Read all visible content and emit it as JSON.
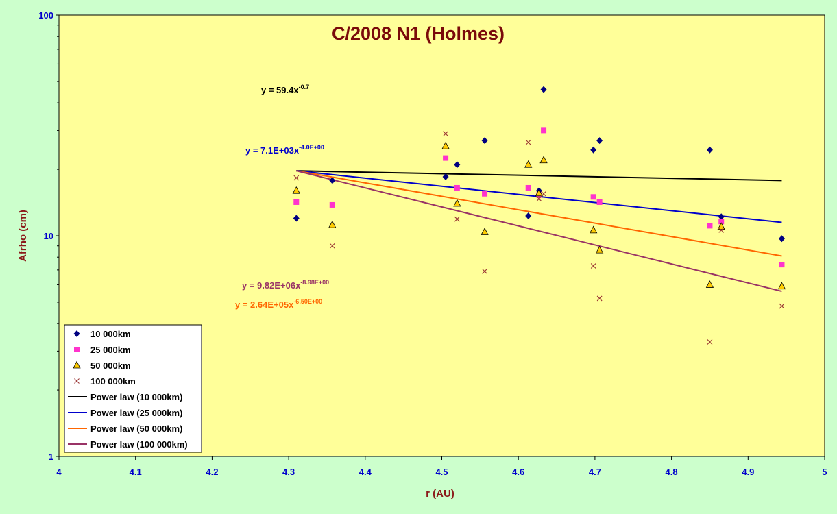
{
  "chart_data": {
    "type": "scatter",
    "title": "C/2008 N1 (Holmes)",
    "xlabel": "r (AU)",
    "ylabel": "Afrho (cm)",
    "xlim": [
      4,
      5
    ],
    "ylim": [
      1,
      100
    ],
    "yscale": "log",
    "x_ticks": [
      "4",
      "4.1",
      "4.2",
      "4.3",
      "4.4",
      "4.5",
      "4.6",
      "4.7",
      "4.8",
      "4.9",
      "5"
    ],
    "y_ticks": [
      "1",
      "10",
      "100"
    ],
    "grid": false,
    "legend_position": "bottom-left",
    "colors": {
      "plot_bg": "#ffff99",
      "outer_bg": "#ccffcc"
    },
    "series": [
      {
        "name": "10 000km",
        "marker": "diamond",
        "color": "#000080",
        "points": [
          [
            4.31,
            12
          ],
          [
            4.357,
            17.8
          ],
          [
            4.505,
            18.5
          ],
          [
            4.52,
            21
          ],
          [
            4.556,
            27
          ],
          [
            4.613,
            12.3
          ],
          [
            4.627,
            16
          ],
          [
            4.633,
            46
          ],
          [
            4.698,
            24.5
          ],
          [
            4.706,
            27
          ],
          [
            4.85,
            24.5
          ],
          [
            4.865,
            12.2
          ],
          [
            4.944,
            9.7
          ]
        ]
      },
      {
        "name": "25 000km",
        "marker": "square",
        "color": "#ff33cc",
        "points": [
          [
            4.31,
            14.2
          ],
          [
            4.357,
            13.8
          ],
          [
            4.505,
            22.5
          ],
          [
            4.52,
            16.5
          ],
          [
            4.556,
            15.5
          ],
          [
            4.613,
            16.5
          ],
          [
            4.627,
            15.3
          ],
          [
            4.633,
            30
          ],
          [
            4.698,
            15
          ],
          [
            4.706,
            14.2
          ],
          [
            4.85,
            11.1
          ],
          [
            4.865,
            11.6
          ],
          [
            4.944,
            7.4
          ]
        ]
      },
      {
        "name": "50 000km",
        "marker": "triangle",
        "color": "#ffcc00",
        "points": [
          [
            4.31,
            16
          ],
          [
            4.357,
            11.2
          ],
          [
            4.505,
            25.5
          ],
          [
            4.52,
            14
          ],
          [
            4.556,
            10.4
          ],
          [
            4.613,
            21
          ],
          [
            4.627,
            15.6
          ],
          [
            4.633,
            22
          ],
          [
            4.698,
            10.6
          ],
          [
            4.706,
            8.6
          ],
          [
            4.85,
            6
          ],
          [
            4.865,
            11
          ],
          [
            4.944,
            5.9
          ]
        ]
      },
      {
        "name": "100 000km",
        "marker": "x",
        "color": "#993333",
        "points": [
          [
            4.31,
            18.3
          ],
          [
            4.357,
            9
          ],
          [
            4.505,
            29
          ],
          [
            4.52,
            11.9
          ],
          [
            4.556,
            6.9
          ],
          [
            4.613,
            26.5
          ],
          [
            4.627,
            14.7
          ],
          [
            4.633,
            15.5
          ],
          [
            4.698,
            7.3
          ],
          [
            4.706,
            5.2
          ],
          [
            4.85,
            3.3
          ],
          [
            4.865,
            10.6
          ],
          [
            4.944,
            4.8
          ]
        ]
      }
    ],
    "trendlines": [
      {
        "name": "Power law (10 000km)",
        "color": "#000000",
        "points": [
          [
            4.31,
            19.7
          ],
          [
            4.944,
            17.8
          ]
        ]
      },
      {
        "name": "Power law (25 000km)",
        "color": "#0000cc",
        "points": [
          [
            4.31,
            19.7
          ],
          [
            4.944,
            11.5
          ]
        ]
      },
      {
        "name": "Power law (50 000km)",
        "color": "#ff6600",
        "points": [
          [
            4.31,
            19.7
          ],
          [
            4.944,
            8.1
          ]
        ]
      },
      {
        "name": "Power law (100 000km)",
        "color": "#993366",
        "points": [
          [
            4.31,
            19.7
          ],
          [
            4.944,
            5.6
          ]
        ]
      }
    ],
    "equations": [
      {
        "base": "y = 59.4x",
        "exp": "-0.7",
        "color": "#000000"
      },
      {
        "base": "y = 7.1E+03x",
        "exp": "-4.0E+00",
        "color": "#0000cc"
      },
      {
        "base": "y = 9.82E+06x",
        "exp": "-8.98E+00",
        "color": "#993366"
      },
      {
        "base": "y = 2.64E+05x",
        "exp": "-6.50E+00",
        "color": "#ff6600"
      }
    ]
  }
}
